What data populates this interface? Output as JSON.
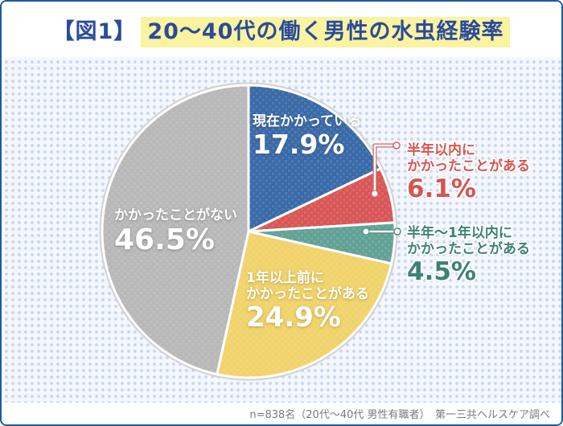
{
  "header": {
    "title_prefix": "【図1】",
    "title_main": "20〜40代の働く男性の水虫経験率",
    "title_color": "#2b4b9b",
    "highlight_color": "#faf3a0"
  },
  "chart_data": {
    "type": "pie",
    "title": "【図1】20〜40代の働く男性の水虫経験率",
    "unit": "%",
    "start_angle_deg": 0,
    "direction": "clockwise",
    "slices": [
      {
        "label": "現在かかっている",
        "value": 17.9,
        "color": "#3a6ba8",
        "label_color": "#ffffff"
      },
      {
        "label": "半年以内にかかったことがある",
        "value": 6.1,
        "color": "#d95757",
        "label_color": "#d9534e"
      },
      {
        "label": "半年〜1年以内にかかったことがある",
        "value": 4.5,
        "color": "#62a296",
        "label_color": "#3c8274"
      },
      {
        "label": "1年以上前にかかったことがある",
        "value": 24.9,
        "color": "#f0d36b",
        "label_color": "#ffffff"
      },
      {
        "label": "かかったことがない",
        "value": 46.5,
        "color": "#b8b8b8",
        "label_color": "#ffffff"
      }
    ],
    "legend": "none",
    "background_pattern": "light blue polka dots",
    "dot_color": "#c9d6f1",
    "background_color": "#f4f7fd"
  },
  "callouts": {
    "blue": {
      "line1": "現在かかっている",
      "pct": "17.9%"
    },
    "red": {
      "line1": "半年以内に",
      "line2": "かかったことがある",
      "pct": "6.1%"
    },
    "teal": {
      "line1": "半年〜1年以内に",
      "line2": "かかったことがある",
      "pct": "4.5%"
    },
    "yellow": {
      "line1": "1年以上前に",
      "line2": "かかったことがある",
      "pct": "24.9%"
    },
    "gray": {
      "line1": "かかったことがない",
      "pct": "46.5%"
    }
  },
  "footer": {
    "note": "n=838名（20代〜40代 男性有職者）　第一三共ヘルスケア調べ"
  }
}
